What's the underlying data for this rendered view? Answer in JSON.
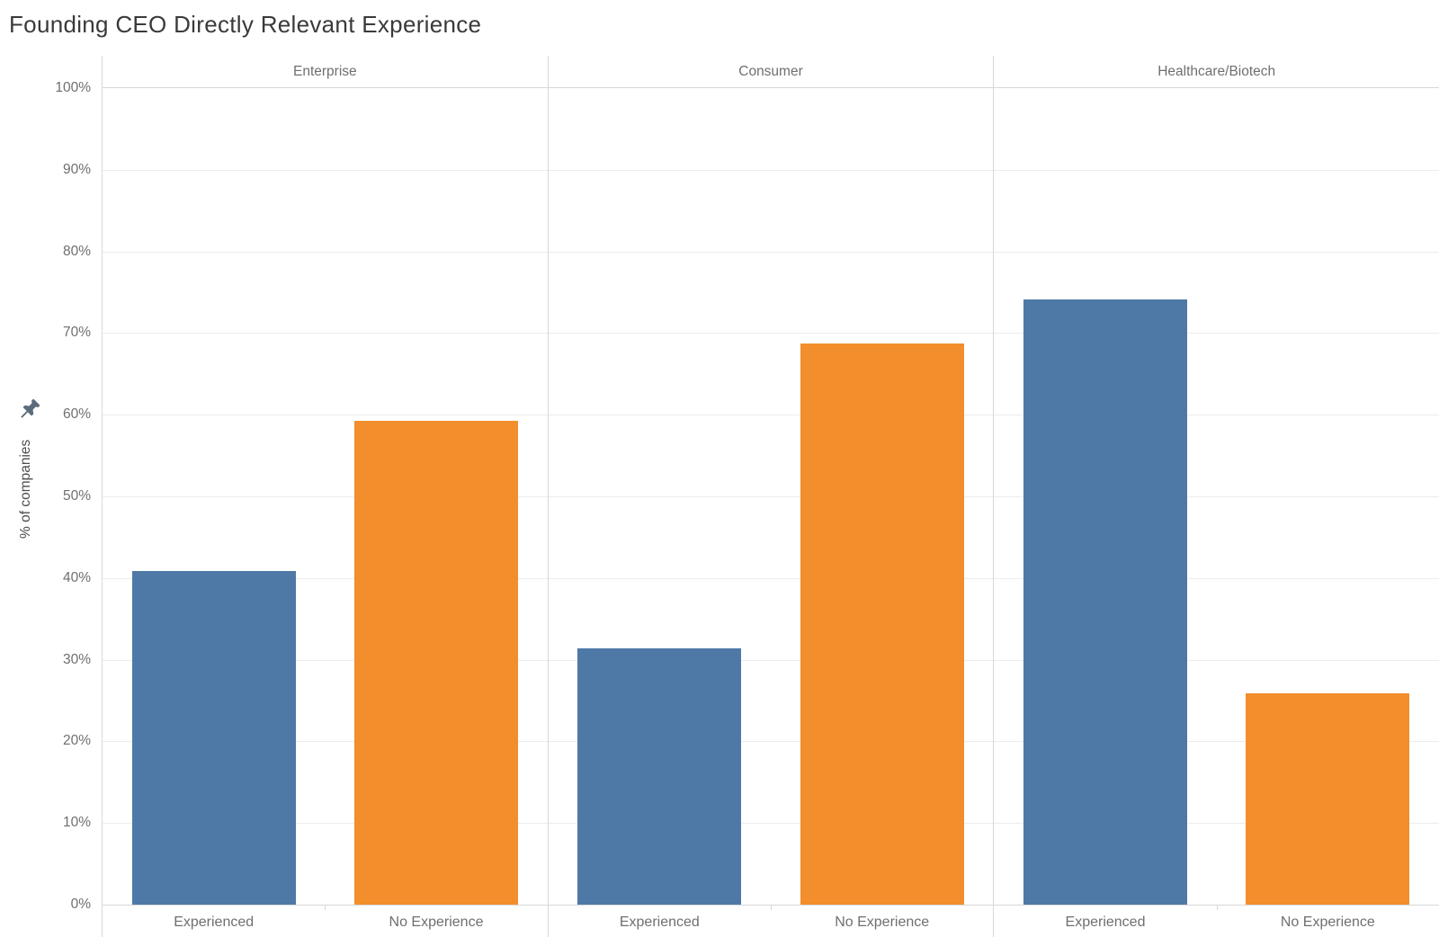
{
  "title": "Founding CEO Directly Relevant Experience",
  "axis": {
    "y_title": "% of companies",
    "tick_labels": [
      "0%",
      "10%",
      "20%",
      "30%",
      "40%",
      "50%",
      "60%",
      "70%",
      "80%",
      "90%",
      "100%"
    ]
  },
  "icons": {
    "pin": "pushpin (fixed-axis indicator)",
    "pin_color": "#5c6b7c"
  },
  "chart_data": {
    "type": "bar",
    "title": "Founding CEO Directly Relevant Experience",
    "ylabel": "% of companies",
    "xlabel": "",
    "ylim": [
      0,
      100
    ],
    "y_tick_step": 10,
    "grid": true,
    "legend": "none",
    "panels": [
      {
        "label": "Enterprise",
        "bars": [
          {
            "category": "Experienced",
            "value": 40.9
          },
          {
            "category": "No Experience",
            "value": 59.2
          }
        ]
      },
      {
        "label": "Consumer",
        "bars": [
          {
            "category": "Experienced",
            "value": 31.4
          },
          {
            "category": "No Experience",
            "value": 68.7
          }
        ]
      },
      {
        "label": "Healthcare/Biotech",
        "bars": [
          {
            "category": "Experienced",
            "value": 74.1
          },
          {
            "category": "No Experience",
            "value": 25.9
          }
        ]
      }
    ],
    "categories": [
      "Experienced",
      "No Experience"
    ],
    "category_colors": {
      "Experienced": "#4e79a7",
      "No Experience": "#f28e2b"
    },
    "line_colors": {
      "gridline": "#ececec",
      "axis": "#d8d8d8"
    }
  }
}
